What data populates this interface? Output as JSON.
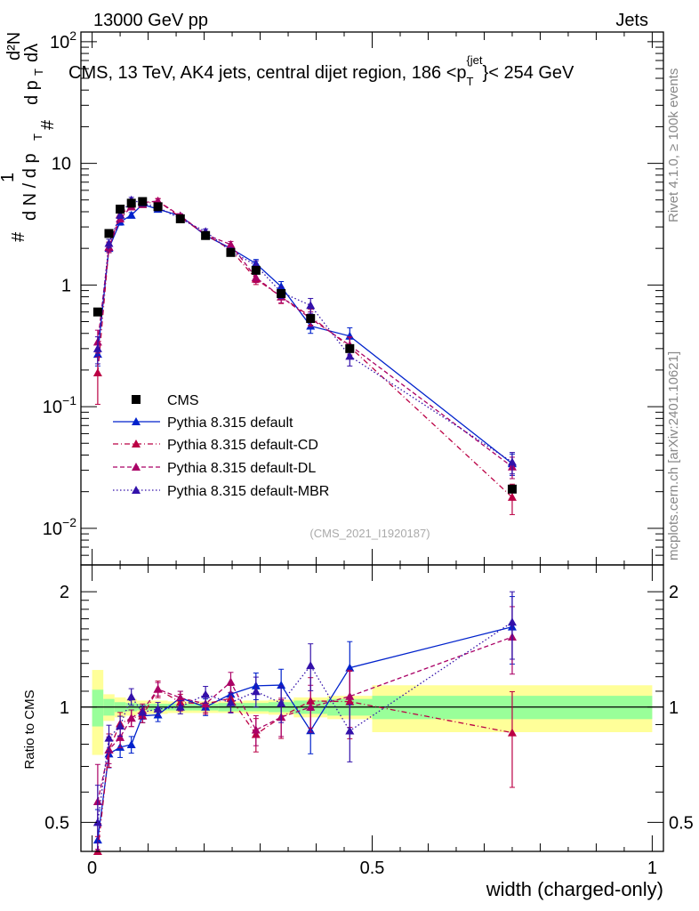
{
  "header": {
    "left": "13000 GeV pp",
    "right": "Jets"
  },
  "side_text": {
    "rivet": "Rivet 4.1.0, ≥ 100k events",
    "mcplots": "mcplots.cern.ch [arXiv:2401.10621]"
  },
  "chart_data": {
    "type": "scatter",
    "title": "CMS, 13 TeV, AK4 jets, central dijet region, 186 < p_T^{jet} < 254 GeV",
    "title_parts": {
      "main": "CMS, 13 TeV, AK4 jets, central dijet region, 186 <p",
      "sub": "T",
      "sup": "{jet",
      "tail": "}< 254 GeV"
    },
    "analysis_label": "(CMS_2021_I1920187)",
    "ylabel_upper": "1/N dN/dp_T d²N/dp_T dλ",
    "ylabel_parts": {
      "hash": "#",
      "one": "1",
      "dn": "d N / d p",
      "dpt": "d p",
      "d2n": "d²N",
      "dlam": "dλ",
      "t": "T"
    },
    "ylabel_lower": "Ratio to CMS",
    "xlabel": "width (charged-only)",
    "xlim": [
      -0.02,
      1.02
    ],
    "ylim_upper": [
      0.005,
      120
    ],
    "ylim_lower": [
      0.42,
      2.35
    ],
    "x_ticks": [
      0,
      0.5,
      1
    ],
    "x_tick_labels": [
      "0",
      "0.5",
      "1"
    ],
    "y_ticks_upper": [
      {
        "value": 0.01,
        "base": "10",
        "exp": "−2"
      },
      {
        "value": 0.1,
        "base": "10",
        "exp": "−1"
      },
      {
        "value": 1,
        "base": "1",
        "exp": ""
      },
      {
        "value": 10,
        "base": "10",
        "exp": ""
      },
      {
        "value": 100,
        "base": "10",
        "exp": "2"
      }
    ],
    "y_ticks_lower": [
      0.5,
      1,
      2
    ],
    "y_tick_labels_lower": [
      "0.5",
      "1",
      "2"
    ],
    "bin_edges": [
      0,
      0.02,
      0.04,
      0.06,
      0.08,
      0.1,
      0.135,
      0.18,
      0.225,
      0.27,
      0.315,
      0.36,
      0.42,
      0.5,
      1.0
    ],
    "data": {
      "name": "CMS",
      "x": [
        0.01,
        0.03,
        0.05,
        0.07,
        0.09,
        0.1175,
        0.1575,
        0.2025,
        0.2475,
        0.2925,
        0.3375,
        0.39,
        0.46,
        0.75
      ],
      "y": [
        0.6,
        2.65,
        4.2,
        4.7,
        4.85,
        4.4,
        3.5,
        2.55,
        1.85,
        1.32,
        0.85,
        0.53,
        0.3,
        0.021
      ],
      "stat_band": [
        0.11,
        0.05,
        0.03,
        0.025,
        0.02,
        0.02,
        0.02,
        0.02,
        0.025,
        0.025,
        0.03,
        0.04,
        0.05,
        0.07
      ],
      "total_band": [
        0.25,
        0.08,
        0.06,
        0.05,
        0.04,
        0.04,
        0.035,
        0.035,
        0.035,
        0.04,
        0.045,
        0.06,
        0.07,
        0.14
      ]
    },
    "series": [
      {
        "name": "Pythia 8.315 default",
        "color": "#0022cc",
        "dash": "",
        "y": [
          0.27,
          2.0,
          3.3,
          3.75,
          4.6,
          4.2,
          3.7,
          2.55,
          2.0,
          1.5,
          0.97,
          0.46,
          0.38,
          0.034
        ],
        "yerr_rel": [
          0.2,
          0.08,
          0.06,
          0.05,
          0.04,
          0.04,
          0.04,
          0.05,
          0.06,
          0.08,
          0.1,
          0.13,
          0.17,
          0.2
        ]
      },
      {
        "name": "Pythia 8.315 default-CD",
        "color": "#bb0044",
        "dash": "6,3,1,3",
        "y": [
          0.19,
          2.05,
          3.8,
          4.4,
          4.6,
          4.9,
          3.6,
          2.6,
          1.95,
          1.12,
          0.8,
          0.55,
          0.31,
          0.018
        ],
        "yerr_rel": [
          0.45,
          0.1,
          0.07,
          0.05,
          0.04,
          0.05,
          0.05,
          0.06,
          0.08,
          0.1,
          0.12,
          0.15,
          0.2,
          0.28
        ]
      },
      {
        "name": "Pythia 8.315 default-DL",
        "color": "#aa0066",
        "dash": "5,3",
        "y": [
          0.34,
          2.05,
          3.5,
          4.4,
          4.75,
          4.9,
          3.7,
          2.6,
          2.15,
          1.15,
          0.8,
          0.53,
          0.32,
          0.032
        ],
        "yerr_rel": [
          0.25,
          0.08,
          0.06,
          0.05,
          0.04,
          0.04,
          0.04,
          0.05,
          0.06,
          0.09,
          0.11,
          0.14,
          0.17,
          0.2
        ]
      },
      {
        "name": "Pythia 8.315 default-MBR",
        "color": "#3311aa",
        "dash": "1.5,2.5",
        "y": [
          0.3,
          2.2,
          3.75,
          5.0,
          4.7,
          4.35,
          3.5,
          2.75,
          1.9,
          1.45,
          0.87,
          0.68,
          0.26,
          0.035
        ],
        "yerr_rel": [
          0.25,
          0.08,
          0.06,
          0.05,
          0.04,
          0.04,
          0.04,
          0.05,
          0.06,
          0.09,
          0.11,
          0.14,
          0.17,
          0.2
        ]
      }
    ],
    "legend": [
      "CMS",
      "Pythia 8.315 default",
      "Pythia 8.315 default-CD",
      "Pythia 8.315 default-DL",
      "Pythia 8.315 default-MBR"
    ],
    "legend_position": "lower-left",
    "colors": {
      "band_total": "#ffff99",
      "band_stat": "#99ff99",
      "data_marker": "#000000"
    }
  }
}
